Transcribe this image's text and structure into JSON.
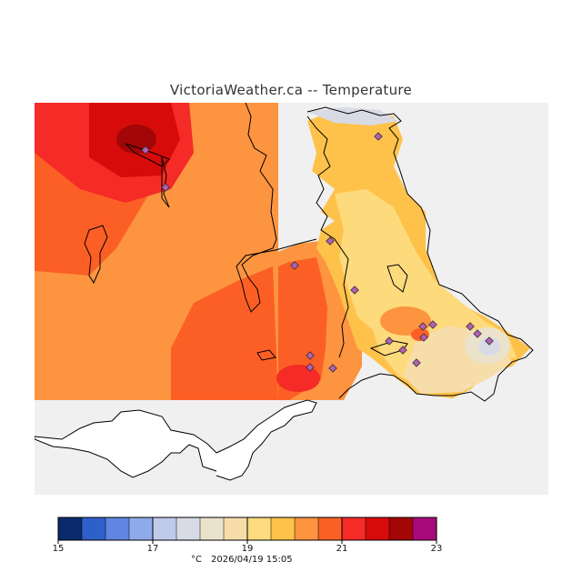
{
  "title": "VictoriaWeather.ca  --  Temperature",
  "legend": {
    "unit": "°C",
    "timestamp": "2026/04/19 15:05",
    "min": 15,
    "max": 23,
    "tick_labels": [
      "15",
      "17",
      "19",
      "21",
      "23"
    ],
    "bins": [
      {
        "color": "#0b2a6b"
      },
      {
        "color": "#2f5fc8"
      },
      {
        "color": "#5f86e0"
      },
      {
        "color": "#8faae8"
      },
      {
        "color": "#c0cbea"
      },
      {
        "color": "#d8dbe6"
      },
      {
        "color": "#ebe2cc"
      },
      {
        "color": "#f6ddaa"
      },
      {
        "color": "#fddb7e"
      },
      {
        "color": "#fec24b"
      },
      {
        "color": "#fd9440"
      },
      {
        "color": "#fc5f25"
      },
      {
        "color": "#f42b26"
      },
      {
        "color": "#d80b0b"
      },
      {
        "color": "#a30606"
      },
      {
        "color": "#a80a7c"
      }
    ]
  },
  "map": {
    "background_color": "#f0f0f0",
    "station_color": "#b45eb4",
    "station_count": 18
  }
}
